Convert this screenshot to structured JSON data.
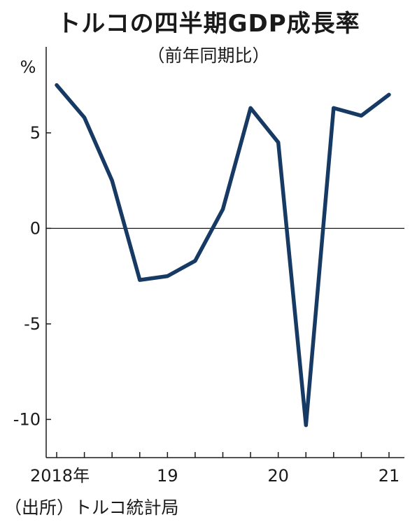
{
  "chart_data": {
    "type": "line",
    "title": "トルコの四半期GDP成長率",
    "subtitle": "（前年同期比）",
    "ylabel": "%",
    "source": "（出所）トルコ統計局",
    "ylim": [
      -12,
      9.5
    ],
    "yticks": [
      5,
      0,
      -5,
      -10
    ],
    "ytick_labels": [
      "5",
      "0",
      "-5",
      "-10"
    ],
    "x": [
      "2018Q1",
      "2018Q2",
      "2018Q3",
      "2018Q4",
      "2019Q1",
      "2019Q2",
      "2019Q3",
      "2019Q4",
      "2020Q1",
      "2020Q2",
      "2020Q3",
      "2020Q4",
      "2021Q1"
    ],
    "xticks": [
      {
        "label": "2018年",
        "index": 0
      },
      {
        "label": "19",
        "index": 4
      },
      {
        "label": "20",
        "index": 8
      },
      {
        "label": "21",
        "index": 12
      }
    ],
    "series": [
      {
        "values": [
          7.5,
          5.8,
          2.5,
          -2.7,
          -2.5,
          -1.7,
          1.0,
          6.3,
          4.5,
          -10.3,
          6.3,
          5.9,
          7.0
        ]
      }
    ],
    "line_color": "#163a63",
    "zero_line": true,
    "grid": false
  }
}
